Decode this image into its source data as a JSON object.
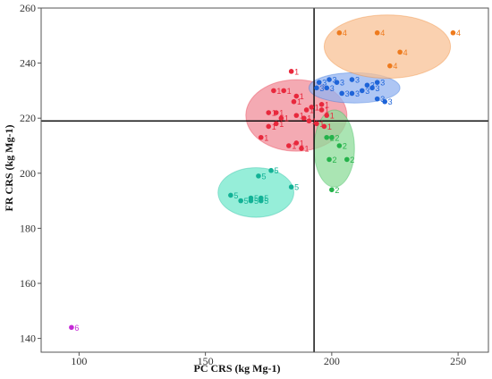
{
  "chart_data": {
    "type": "scatter",
    "xlabel": "PC CRS (kg Mg-1)",
    "ylabel": "FR CRS (kg Mg-1)",
    "xlim": [
      85,
      262
    ],
    "ylim": [
      135,
      260
    ],
    "x_ticks": [
      100,
      150,
      200,
      250
    ],
    "y_ticks": [
      140,
      160,
      180,
      200,
      220,
      240,
      260
    ],
    "grid": false,
    "reference_lines": {
      "x": 193,
      "y": 219
    },
    "series": [
      {
        "name": "1",
        "color": "#e8283c",
        "ellipse": {
          "cx": 186,
          "cy": 221,
          "rx": 20,
          "ry": 13,
          "fill": "#f08d99"
        },
        "points": [
          [
            184,
            237
          ],
          [
            177,
            230
          ],
          [
            181,
            230
          ],
          [
            186,
            228
          ],
          [
            185,
            226
          ],
          [
            192,
            224
          ],
          [
            196,
            225
          ],
          [
            190,
            223
          ],
          [
            196,
            223
          ],
          [
            178,
            222
          ],
          [
            186,
            221
          ],
          [
            180,
            220
          ],
          [
            189,
            220
          ],
          [
            198,
            221
          ],
          [
            191,
            219
          ],
          [
            194,
            218
          ],
          [
            197,
            217
          ],
          [
            175,
            217
          ],
          [
            172,
            213
          ],
          [
            178,
            218
          ],
          [
            183,
            210
          ],
          [
            188,
            209
          ],
          [
            175,
            222
          ],
          [
            186,
            211
          ]
        ]
      },
      {
        "name": "2",
        "color": "#24b24a",
        "ellipse": {
          "cx": 201,
          "cy": 209,
          "rx": 8,
          "ry": 14,
          "fill": "#8edc99"
        },
        "points": [
          [
            198,
            213
          ],
          [
            200,
            213
          ],
          [
            203,
            210
          ],
          [
            199,
            205
          ],
          [
            206,
            205
          ],
          [
            200,
            194
          ]
        ]
      },
      {
        "name": "3",
        "color": "#1e64d8",
        "ellipse": {
          "cx": 209,
          "cy": 231,
          "rx": 18,
          "ry": 5.5,
          "fill": "#93b3f0"
        },
        "points": [
          [
            195,
            233
          ],
          [
            199,
            234
          ],
          [
            202,
            233
          ],
          [
            208,
            234
          ],
          [
            214,
            232
          ],
          [
            218,
            233
          ],
          [
            198,
            231
          ],
          [
            204,
            229
          ],
          [
            208,
            229
          ],
          [
            212,
            230
          ],
          [
            216,
            231
          ],
          [
            221,
            226
          ],
          [
            218,
            227
          ],
          [
            194,
            231
          ]
        ]
      },
      {
        "name": "4",
        "color": "#ee7b1e",
        "ellipse": {
          "cx": 222,
          "cy": 246,
          "rx": 25,
          "ry": 11.5,
          "fill": "#f8c296"
        },
        "points": [
          [
            203,
            251
          ],
          [
            218,
            251
          ],
          [
            248,
            251
          ],
          [
            227,
            244
          ],
          [
            223,
            239
          ]
        ]
      },
      {
        "name": "5",
        "color": "#12b296",
        "ellipse": {
          "cx": 170,
          "cy": 193,
          "rx": 15,
          "ry": 9,
          "fill": "#73e8cc"
        },
        "points": [
          [
            176,
            201
          ],
          [
            171,
            199
          ],
          [
            184,
            195
          ],
          [
            160,
            192
          ],
          [
            168,
            191
          ],
          [
            172,
            191
          ],
          [
            164,
            190
          ],
          [
            168,
            190
          ],
          [
            172,
            190
          ]
        ]
      },
      {
        "name": "6",
        "color": "#c42ad6",
        "points": [
          [
            97,
            144
          ]
        ]
      }
    ]
  }
}
